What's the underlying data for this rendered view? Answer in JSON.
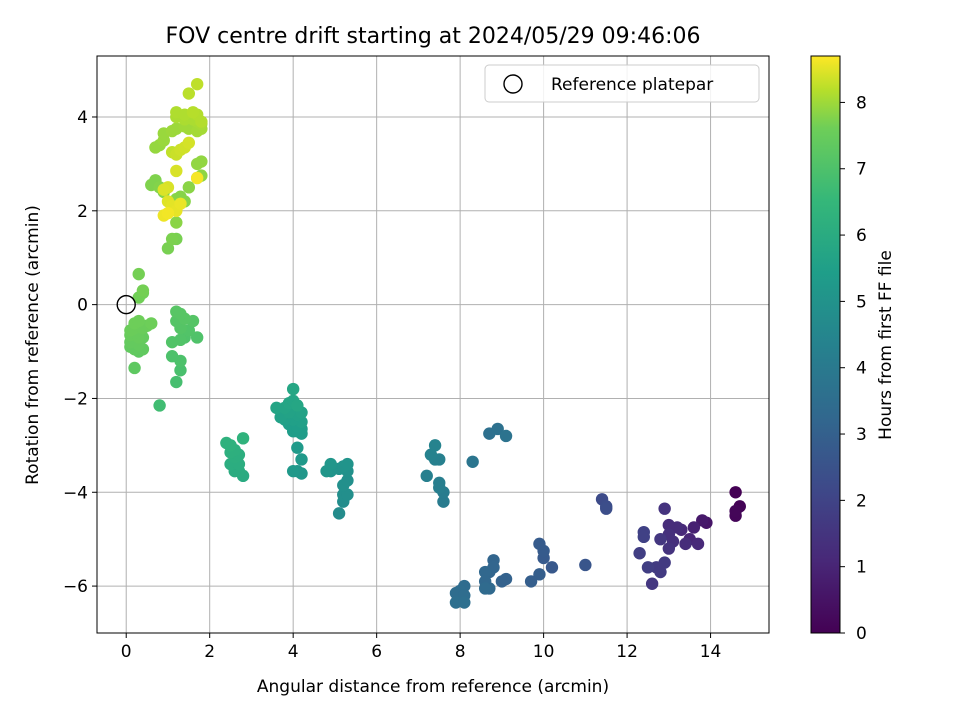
{
  "chart_data": {
    "type": "scatter",
    "title": "FOV centre drift starting at 2024/05/29 09:46:06",
    "xlabel": "Angular distance from reference (arcmin)",
    "ylabel": "Rotation from reference (arcmin)",
    "xlim": [
      -0.7,
      15.4
    ],
    "ylim": [
      -7.0,
      5.3
    ],
    "xticks": [
      0,
      2,
      4,
      6,
      8,
      10,
      12,
      14
    ],
    "yticks": [
      -6,
      -4,
      -2,
      0,
      2,
      4
    ],
    "grid": true,
    "legend": {
      "placement": "top-right",
      "entries": [
        "Reference platepar"
      ]
    },
    "reference_point": {
      "x": 0,
      "y": 0
    },
    "colorbar": {
      "label": "Hours from first FF file",
      "range": [
        0,
        8.7
      ],
      "ticks": [
        0,
        1,
        2,
        3,
        4,
        5,
        6,
        7,
        8
      ],
      "colormap": "viridis"
    },
    "points": [
      {
        "x": 14.6,
        "y": -4.0,
        "h": 0.0
      },
      {
        "x": 14.7,
        "y": -4.3,
        "h": 0.05
      },
      {
        "x": 14.6,
        "y": -4.5,
        "h": 0.1
      },
      {
        "x": 14.6,
        "y": -4.4,
        "h": 0.12
      },
      {
        "x": 13.9,
        "y": -4.65,
        "h": 0.5
      },
      {
        "x": 13.8,
        "y": -4.6,
        "h": 0.6
      },
      {
        "x": 13.6,
        "y": -4.75,
        "h": 0.8
      },
      {
        "x": 13.5,
        "y": -5.0,
        "h": 0.9
      },
      {
        "x": 13.3,
        "y": -4.8,
        "h": 1.0
      },
      {
        "x": 13.2,
        "y": -4.75,
        "h": 1.1
      },
      {
        "x": 13.0,
        "y": -4.7,
        "h": 1.1
      },
      {
        "x": 13.0,
        "y": -4.9,
        "h": 1.2
      },
      {
        "x": 13.1,
        "y": -5.05,
        "h": 1.2
      },
      {
        "x": 13.4,
        "y": -5.1,
        "h": 1.1
      },
      {
        "x": 13.7,
        "y": -5.1,
        "h": 1.0
      },
      {
        "x": 12.9,
        "y": -4.35,
        "h": 1.3
      },
      {
        "x": 12.8,
        "y": -5.0,
        "h": 1.4
      },
      {
        "x": 12.7,
        "y": -5.6,
        "h": 1.5
      },
      {
        "x": 12.8,
        "y": -5.7,
        "h": 1.5
      },
      {
        "x": 12.6,
        "y": -5.95,
        "h": 1.4
      },
      {
        "x": 12.5,
        "y": -5.6,
        "h": 1.6
      },
      {
        "x": 12.9,
        "y": -5.5,
        "h": 1.5
      },
      {
        "x": 13.0,
        "y": -5.2,
        "h": 1.3
      },
      {
        "x": 12.4,
        "y": -4.85,
        "h": 1.7
      },
      {
        "x": 12.4,
        "y": -4.95,
        "h": 1.7
      },
      {
        "x": 12.3,
        "y": -5.3,
        "h": 1.6
      },
      {
        "x": 11.4,
        "y": -4.15,
        "h": 2.0
      },
      {
        "x": 11.5,
        "y": -4.3,
        "h": 2.05
      },
      {
        "x": 11.5,
        "y": -4.35,
        "h": 2.1
      },
      {
        "x": 11.0,
        "y": -5.55,
        "h": 2.3
      },
      {
        "x": 10.2,
        "y": -5.6,
        "h": 2.4
      },
      {
        "x": 10.0,
        "y": -5.4,
        "h": 2.45
      },
      {
        "x": 10.0,
        "y": -5.25,
        "h": 2.5
      },
      {
        "x": 9.9,
        "y": -5.1,
        "h": 2.5
      },
      {
        "x": 9.9,
        "y": -5.75,
        "h": 2.6
      },
      {
        "x": 9.7,
        "y": -5.9,
        "h": 2.6
      },
      {
        "x": 9.1,
        "y": -5.85,
        "h": 2.7
      },
      {
        "x": 9.0,
        "y": -5.9,
        "h": 2.7
      },
      {
        "x": 8.8,
        "y": -5.45,
        "h": 2.8
      },
      {
        "x": 8.8,
        "y": -5.6,
        "h": 2.85
      },
      {
        "x": 8.7,
        "y": -5.7,
        "h": 2.85
      },
      {
        "x": 8.6,
        "y": -5.7,
        "h": 2.9
      },
      {
        "x": 8.6,
        "y": -5.9,
        "h": 2.9
      },
      {
        "x": 8.7,
        "y": -6.05,
        "h": 2.95
      },
      {
        "x": 8.6,
        "y": -6.05,
        "h": 3.0
      },
      {
        "x": 8.1,
        "y": -6.0,
        "h": 3.05
      },
      {
        "x": 8.0,
        "y": -6.1,
        "h": 3.1
      },
      {
        "x": 7.9,
        "y": -6.15,
        "h": 3.1
      },
      {
        "x": 8.1,
        "y": -6.2,
        "h": 3.1
      },
      {
        "x": 7.9,
        "y": -6.35,
        "h": 3.15
      },
      {
        "x": 8.1,
        "y": -6.35,
        "h": 3.15
      },
      {
        "x": 8.7,
        "y": -2.75,
        "h": 3.2
      },
      {
        "x": 8.9,
        "y": -2.65,
        "h": 3.25
      },
      {
        "x": 9.1,
        "y": -2.8,
        "h": 3.3
      },
      {
        "x": 8.3,
        "y": -3.35,
        "h": 3.4
      },
      {
        "x": 7.6,
        "y": -4.2,
        "h": 3.6
      },
      {
        "x": 7.6,
        "y": -4.0,
        "h": 3.65
      },
      {
        "x": 7.5,
        "y": -3.8,
        "h": 3.7
      },
      {
        "x": 7.5,
        "y": -3.9,
        "h": 3.7
      },
      {
        "x": 7.2,
        "y": -3.65,
        "h": 3.75
      },
      {
        "x": 7.4,
        "y": -3.3,
        "h": 3.8
      },
      {
        "x": 7.5,
        "y": -3.3,
        "h": 3.8
      },
      {
        "x": 7.3,
        "y": -3.2,
        "h": 3.85
      },
      {
        "x": 7.4,
        "y": -3.0,
        "h": 3.9
      },
      {
        "x": 5.1,
        "y": -4.45,
        "h": 4.2
      },
      {
        "x": 5.2,
        "y": -4.2,
        "h": 4.25
      },
      {
        "x": 5.2,
        "y": -4.05,
        "h": 4.3
      },
      {
        "x": 5.3,
        "y": -4.05,
        "h": 4.3
      },
      {
        "x": 5.2,
        "y": -3.85,
        "h": 4.35
      },
      {
        "x": 5.3,
        "y": -3.75,
        "h": 4.35
      },
      {
        "x": 5.3,
        "y": -3.55,
        "h": 4.4
      },
      {
        "x": 5.1,
        "y": -3.5,
        "h": 4.45
      },
      {
        "x": 5.2,
        "y": -3.45,
        "h": 4.45
      },
      {
        "x": 5.3,
        "y": -3.4,
        "h": 4.5
      },
      {
        "x": 4.9,
        "y": -3.55,
        "h": 4.5
      },
      {
        "x": 4.8,
        "y": -3.55,
        "h": 4.55
      },
      {
        "x": 4.9,
        "y": -3.4,
        "h": 4.55
      },
      {
        "x": 4.2,
        "y": -3.6,
        "h": 4.6
      },
      {
        "x": 4.1,
        "y": -3.55,
        "h": 4.6
      },
      {
        "x": 4.0,
        "y": -3.55,
        "h": 4.65
      },
      {
        "x": 4.2,
        "y": -3.3,
        "h": 4.65
      },
      {
        "x": 4.1,
        "y": -3.05,
        "h": 4.7
      },
      {
        "x": 4.2,
        "y": -2.75,
        "h": 4.75
      },
      {
        "x": 4.0,
        "y": -2.7,
        "h": 4.8
      },
      {
        "x": 4.1,
        "y": -2.7,
        "h": 4.8
      },
      {
        "x": 4.2,
        "y": -2.65,
        "h": 4.8
      },
      {
        "x": 3.9,
        "y": -2.55,
        "h": 4.85
      },
      {
        "x": 4.1,
        "y": -2.6,
        "h": 4.85
      },
      {
        "x": 4.2,
        "y": -2.5,
        "h": 4.9
      },
      {
        "x": 4.0,
        "y": -2.45,
        "h": 4.9
      },
      {
        "x": 3.8,
        "y": -2.45,
        "h": 4.9
      },
      {
        "x": 3.7,
        "y": -2.4,
        "h": 4.95
      },
      {
        "x": 4.1,
        "y": -2.35,
        "h": 4.95
      },
      {
        "x": 4.2,
        "y": -2.3,
        "h": 5.0
      },
      {
        "x": 3.9,
        "y": -2.3,
        "h": 5.0
      },
      {
        "x": 3.8,
        "y": -2.2,
        "h": 5.05
      },
      {
        "x": 3.6,
        "y": -2.2,
        "h": 5.05
      },
      {
        "x": 3.9,
        "y": -2.1,
        "h": 5.1
      },
      {
        "x": 4.0,
        "y": -2.05,
        "h": 5.1
      },
      {
        "x": 4.1,
        "y": -2.15,
        "h": 5.15
      },
      {
        "x": 4.0,
        "y": -1.8,
        "h": 5.15
      },
      {
        "x": 2.8,
        "y": -3.65,
        "h": 5.3
      },
      {
        "x": 2.7,
        "y": -3.55,
        "h": 5.35
      },
      {
        "x": 2.6,
        "y": -3.55,
        "h": 5.35
      },
      {
        "x": 2.5,
        "y": -3.4,
        "h": 5.4
      },
      {
        "x": 2.7,
        "y": -3.4,
        "h": 5.4
      },
      {
        "x": 2.6,
        "y": -3.25,
        "h": 5.45
      },
      {
        "x": 2.7,
        "y": -3.2,
        "h": 5.45
      },
      {
        "x": 2.5,
        "y": -3.15,
        "h": 5.5
      },
      {
        "x": 2.6,
        "y": -3.1,
        "h": 5.5
      },
      {
        "x": 2.4,
        "y": -2.95,
        "h": 5.55
      },
      {
        "x": 2.5,
        "y": -3.0,
        "h": 5.55
      },
      {
        "x": 2.8,
        "y": -2.85,
        "h": 5.6
      },
      {
        "x": 0.8,
        "y": -2.15,
        "h": 6.0
      },
      {
        "x": 1.2,
        "y": -1.65,
        "h": 6.1
      },
      {
        "x": 1.3,
        "y": -1.4,
        "h": 6.15
      },
      {
        "x": 1.3,
        "y": -1.2,
        "h": 6.2
      },
      {
        "x": 1.1,
        "y": -1.1,
        "h": 6.2
      },
      {
        "x": 1.7,
        "y": -0.7,
        "h": 6.25
      },
      {
        "x": 1.4,
        "y": -0.7,
        "h": 6.25
      },
      {
        "x": 1.3,
        "y": -0.75,
        "h": 6.3
      },
      {
        "x": 1.1,
        "y": -0.8,
        "h": 6.3
      },
      {
        "x": 1.5,
        "y": -0.55,
        "h": 6.3
      },
      {
        "x": 1.3,
        "y": -0.5,
        "h": 6.35
      },
      {
        "x": 1.6,
        "y": -0.35,
        "h": 6.35
      },
      {
        "x": 1.2,
        "y": -0.35,
        "h": 6.35
      },
      {
        "x": 1.4,
        "y": -0.3,
        "h": 6.4
      },
      {
        "x": 1.3,
        "y": -0.2,
        "h": 6.4
      },
      {
        "x": 1.2,
        "y": -0.15,
        "h": 6.4
      },
      {
        "x": 0.2,
        "y": -1.35,
        "h": 6.5
      },
      {
        "x": 0.3,
        "y": -1.0,
        "h": 6.5
      },
      {
        "x": 0.2,
        "y": -0.95,
        "h": 6.55
      },
      {
        "x": 0.4,
        "y": -0.95,
        "h": 6.55
      },
      {
        "x": 0.1,
        "y": -0.9,
        "h": 6.55
      },
      {
        "x": 0.3,
        "y": -0.85,
        "h": 6.6
      },
      {
        "x": 0.1,
        "y": -0.8,
        "h": 6.6
      },
      {
        "x": 0.2,
        "y": -0.75,
        "h": 6.6
      },
      {
        "x": 0.4,
        "y": -0.7,
        "h": 6.6
      },
      {
        "x": 0.3,
        "y": -0.7,
        "h": 6.65
      },
      {
        "x": 0.1,
        "y": -0.65,
        "h": 6.65
      },
      {
        "x": 0.2,
        "y": -0.6,
        "h": 6.65
      },
      {
        "x": 0.3,
        "y": -0.55,
        "h": 6.65
      },
      {
        "x": 0.1,
        "y": -0.55,
        "h": 6.7
      },
      {
        "x": 0.2,
        "y": -0.5,
        "h": 6.7
      },
      {
        "x": 0.3,
        "y": -0.45,
        "h": 6.7
      },
      {
        "x": 0.4,
        "y": -0.5,
        "h": 6.7
      },
      {
        "x": 0.5,
        "y": -0.45,
        "h": 6.7
      },
      {
        "x": 0.6,
        "y": -0.4,
        "h": 6.75
      },
      {
        "x": 0.2,
        "y": -0.4,
        "h": 6.75
      },
      {
        "x": 0.3,
        "y": -0.35,
        "h": 6.75
      },
      {
        "x": 0.3,
        "y": 0.15,
        "h": 6.8
      },
      {
        "x": 0.4,
        "y": 0.25,
        "h": 6.8
      },
      {
        "x": 0.4,
        "y": 0.3,
        "h": 6.85
      },
      {
        "x": 0.3,
        "y": 0.65,
        "h": 6.85
      },
      {
        "x": 1.0,
        "y": 1.2,
        "h": 6.9
      },
      {
        "x": 1.2,
        "y": 1.4,
        "h": 6.9
      },
      {
        "x": 1.1,
        "y": 1.4,
        "h": 6.95
      },
      {
        "x": 0.7,
        "y": 2.65,
        "h": 7.0
      },
      {
        "x": 0.6,
        "y": 2.55,
        "h": 7.0
      },
      {
        "x": 0.8,
        "y": 2.5,
        "h": 7.05
      },
      {
        "x": 0.9,
        "y": 2.4,
        "h": 7.05
      },
      {
        "x": 1.3,
        "y": 2.3,
        "h": 7.1
      },
      {
        "x": 1.2,
        "y": 2.25,
        "h": 7.1
      },
      {
        "x": 1.4,
        "y": 2.2,
        "h": 7.1
      },
      {
        "x": 1.2,
        "y": 1.75,
        "h": 7.15
      },
      {
        "x": 1.5,
        "y": 2.5,
        "h": 7.15
      },
      {
        "x": 1.7,
        "y": 2.7,
        "h": 7.2
      },
      {
        "x": 1.8,
        "y": 2.75,
        "h": 7.2
      },
      {
        "x": 1.7,
        "y": 3.0,
        "h": 7.25
      },
      {
        "x": 1.8,
        "y": 3.05,
        "h": 7.25
      },
      {
        "x": 0.7,
        "y": 3.35,
        "h": 7.3
      },
      {
        "x": 0.8,
        "y": 3.4,
        "h": 7.3
      },
      {
        "x": 0.9,
        "y": 3.5,
        "h": 7.35
      },
      {
        "x": 0.9,
        "y": 3.65,
        "h": 7.35
      },
      {
        "x": 1.1,
        "y": 3.7,
        "h": 7.4
      },
      {
        "x": 1.2,
        "y": 3.75,
        "h": 7.4
      },
      {
        "x": 1.4,
        "y": 3.8,
        "h": 7.45
      },
      {
        "x": 1.5,
        "y": 3.75,
        "h": 7.45
      },
      {
        "x": 1.7,
        "y": 3.7,
        "h": 7.5
      },
      {
        "x": 1.8,
        "y": 3.75,
        "h": 7.5
      },
      {
        "x": 1.8,
        "y": 3.85,
        "h": 7.55
      },
      {
        "x": 1.7,
        "y": 3.9,
        "h": 7.55
      },
      {
        "x": 1.6,
        "y": 3.95,
        "h": 7.6
      },
      {
        "x": 1.4,
        "y": 3.95,
        "h": 7.6
      },
      {
        "x": 1.2,
        "y": 4.0,
        "h": 7.6
      },
      {
        "x": 1.2,
        "y": 4.1,
        "h": 7.65
      },
      {
        "x": 1.4,
        "y": 4.05,
        "h": 7.65
      },
      {
        "x": 1.7,
        "y": 4.05,
        "h": 7.7
      },
      {
        "x": 1.8,
        "y": 3.9,
        "h": 7.7
      },
      {
        "x": 1.6,
        "y": 4.1,
        "h": 7.75
      },
      {
        "x": 1.5,
        "y": 4.5,
        "h": 7.8
      },
      {
        "x": 1.7,
        "y": 4.7,
        "h": 7.85
      },
      {
        "x": 1.1,
        "y": 3.25,
        "h": 7.9
      },
      {
        "x": 1.2,
        "y": 3.2,
        "h": 8.0
      },
      {
        "x": 1.3,
        "y": 3.3,
        "h": 8.05
      },
      {
        "x": 1.4,
        "y": 3.35,
        "h": 8.1
      },
      {
        "x": 1.5,
        "y": 3.45,
        "h": 8.15
      },
      {
        "x": 1.2,
        "y": 2.85,
        "h": 8.2
      },
      {
        "x": 1.0,
        "y": 2.5,
        "h": 8.2
      },
      {
        "x": 0.9,
        "y": 2.45,
        "h": 8.25
      },
      {
        "x": 1.0,
        "y": 2.2,
        "h": 8.3
      },
      {
        "x": 1.1,
        "y": 2.1,
        "h": 8.35
      },
      {
        "x": 1.2,
        "y": 2.0,
        "h": 8.4
      },
      {
        "x": 1.3,
        "y": 2.15,
        "h": 8.45
      },
      {
        "x": 0.9,
        "y": 1.9,
        "h": 8.5
      },
      {
        "x": 1.0,
        "y": 1.95,
        "h": 8.55
      },
      {
        "x": 1.7,
        "y": 2.7,
        "h": 8.6
      }
    ]
  }
}
